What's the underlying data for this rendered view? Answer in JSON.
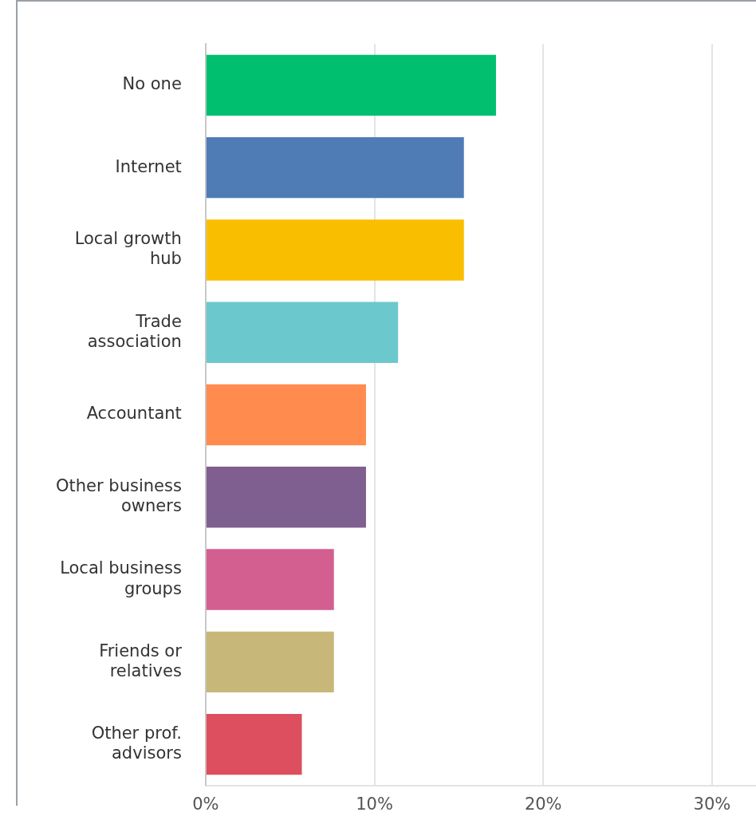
{
  "chart_data": {
    "type": "bar",
    "orientation": "horizontal",
    "categories": [
      "No one",
      "Internet",
      "Local growth hub",
      "Trade association",
      "Accountant",
      "Other business owners",
      "Local business groups",
      "Friends or relatives",
      "Other prof. advisors"
    ],
    "values": [
      17.2,
      15.3,
      15.3,
      11.4,
      9.5,
      9.5,
      7.6,
      7.6,
      5.7
    ],
    "colors": [
      "#00bf6f",
      "#507cb6",
      "#f9be00",
      "#6bc8cd",
      "#ff8b4f",
      "#7f5f8f",
      "#d25f90",
      "#c7b879",
      "#dd4e5e"
    ],
    "xlim": [
      0,
      32.6
    ],
    "xticks": [
      {
        "value": 0,
        "label": "0%"
      },
      {
        "value": 10,
        "label": "10%"
      },
      {
        "value": 20,
        "label": "20%"
      },
      {
        "value": 30,
        "label": "30%"
      }
    ],
    "grid": "x",
    "legend": false
  }
}
